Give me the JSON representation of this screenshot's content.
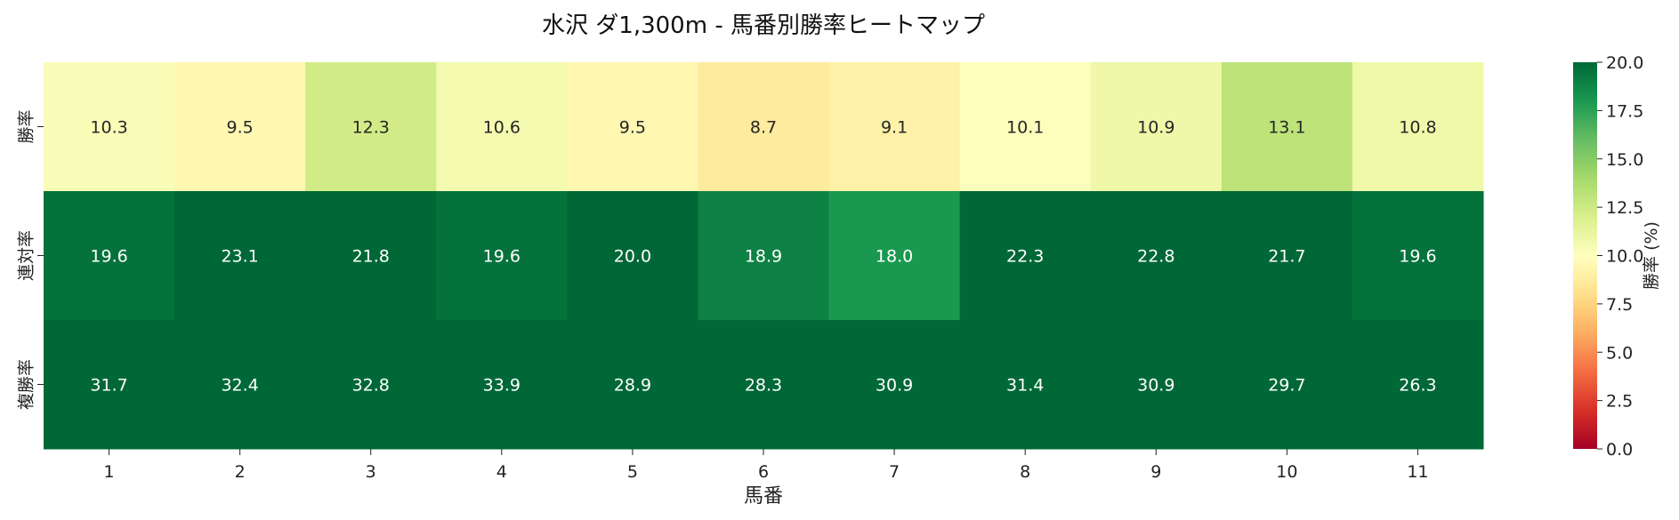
{
  "chart_data": {
    "type": "heatmap",
    "title": "水沢 ダ1,300m - 馬番別勝率ヒートマップ",
    "xlabel": "馬番",
    "ylabel": "",
    "x_categories": [
      "1",
      "2",
      "3",
      "4",
      "5",
      "6",
      "7",
      "8",
      "9",
      "10",
      "11"
    ],
    "y_categories": [
      "勝率",
      "連対率",
      "複勝率"
    ],
    "values": [
      [
        10.3,
        9.5,
        12.3,
        10.6,
        9.5,
        8.7,
        9.1,
        10.1,
        10.9,
        13.1,
        10.8
      ],
      [
        19.6,
        23.1,
        21.8,
        19.6,
        20.0,
        18.9,
        18.0,
        22.3,
        22.8,
        21.7,
        19.6
      ],
      [
        31.7,
        32.4,
        32.8,
        33.9,
        28.9,
        28.3,
        30.9,
        31.4,
        30.9,
        29.7,
        26.3
      ]
    ],
    "value_labels": [
      [
        "10.3",
        "9.5",
        "12.3",
        "10.6",
        "9.5",
        "8.7",
        "9.1",
        "10.1",
        "10.9",
        "13.1",
        "10.8"
      ],
      [
        "19.6",
        "23.1",
        "21.8",
        "19.6",
        "20.0",
        "18.9",
        "18.0",
        "22.3",
        "22.8",
        "21.7",
        "19.6"
      ],
      [
        "31.7",
        "32.4",
        "32.8",
        "33.9",
        "28.9",
        "28.3",
        "30.9",
        "31.4",
        "30.9",
        "29.7",
        "26.3"
      ]
    ],
    "colormap": "RdYlGn",
    "vmin": 0,
    "vmax": 20,
    "colorbar": {
      "label": "勝率 (%)",
      "ticks": [
        "0.0",
        "2.5",
        "5.0",
        "7.5",
        "10.0",
        "12.5",
        "15.0",
        "17.5",
        "20.0"
      ],
      "tick_values": [
        0,
        2.5,
        5,
        7.5,
        10,
        12.5,
        15,
        17.5,
        20
      ]
    },
    "grid": false
  }
}
